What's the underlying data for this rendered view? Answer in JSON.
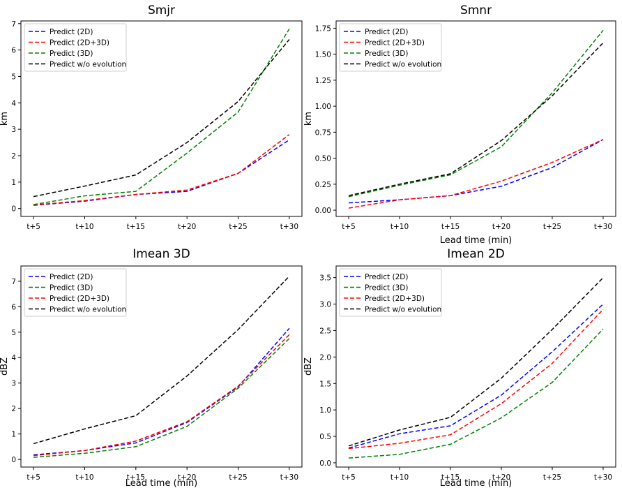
{
  "chart_data": [
    {
      "type": "line",
      "title": "Smjr",
      "xlabel": "",
      "ylabel": "km",
      "categories": [
        "t+5",
        "t+10",
        "t+15",
        "t+20",
        "t+25",
        "t+30"
      ],
      "ylim": [
        -0.3,
        7.1
      ],
      "yticks": [
        "0",
        "1",
        "2",
        "3",
        "4",
        "5",
        "6",
        "7"
      ],
      "ytick_values": [
        0,
        1,
        2,
        3,
        4,
        5,
        6,
        7
      ],
      "grid": false,
      "legend_position": "top-left",
      "series": [
        {
          "name": "Predict (2D)",
          "color": "#0000ff",
          "values": [
            0.12,
            0.28,
            0.53,
            0.65,
            1.33,
            2.6
          ]
        },
        {
          "name": "Predict (2D+3D)",
          "color": "#ff0000",
          "values": [
            0.13,
            0.3,
            0.53,
            0.7,
            1.33,
            2.8
          ]
        },
        {
          "name": "Predict (3D)",
          "color": "#008000",
          "values": [
            0.15,
            0.48,
            0.65,
            2.1,
            3.65,
            6.8
          ]
        },
        {
          "name": "Predict w/o evolution",
          "color": "#000000",
          "values": [
            0.45,
            0.85,
            1.27,
            2.5,
            4.05,
            6.4
          ]
        }
      ]
    },
    {
      "type": "line",
      "title": "Smnr",
      "xlabel": "Lead time (min)",
      "ylabel": "km",
      "categories": [
        "t+5",
        "t+10",
        "t+15",
        "t+20",
        "t+25",
        "t+30"
      ],
      "ylim": [
        -0.06,
        1.82
      ],
      "yticks": [
        "0.00",
        "0.25",
        "0.50",
        "0.75",
        "1.00",
        "1.25",
        "1.50",
        "1.75"
      ],
      "ytick_values": [
        0,
        0.25,
        0.5,
        0.75,
        1.0,
        1.25,
        1.5,
        1.75
      ],
      "grid": false,
      "legend_position": "top-left",
      "series": [
        {
          "name": "Predict (2D)",
          "color": "#0000ff",
          "values": [
            0.07,
            0.1,
            0.14,
            0.23,
            0.41,
            0.68
          ]
        },
        {
          "name": "Predict (2D+3D)",
          "color": "#ff0000",
          "values": [
            0.02,
            0.1,
            0.14,
            0.28,
            0.46,
            0.68
          ]
        },
        {
          "name": "Predict (3D)",
          "color": "#008000",
          "values": [
            0.13,
            0.24,
            0.34,
            0.61,
            1.13,
            1.73
          ]
        },
        {
          "name": "Predict w/o evolution",
          "color": "#000000",
          "values": [
            0.14,
            0.25,
            0.35,
            0.67,
            1.1,
            1.61
          ]
        }
      ]
    },
    {
      "type": "line",
      "title": "Imean 3D",
      "xlabel": "Lead time (min)",
      "ylabel": "dBZ",
      "categories": [
        "t+5",
        "t+10",
        "t+15",
        "t+20",
        "t+25",
        "t+30"
      ],
      "ylim": [
        -0.3,
        7.6
      ],
      "yticks": [
        "0",
        "1",
        "2",
        "3",
        "4",
        "5",
        "6",
        "7"
      ],
      "ytick_values": [
        0,
        1,
        2,
        3,
        4,
        5,
        6,
        7
      ],
      "grid": false,
      "legend_position": "top-left",
      "series": [
        {
          "name": "Predict (2D)",
          "color": "#0000ff",
          "values": [
            0.18,
            0.35,
            0.65,
            1.45,
            2.85,
            5.15
          ]
        },
        {
          "name": "Predict (3D)",
          "color": "#008000",
          "values": [
            0.08,
            0.24,
            0.5,
            1.3,
            2.8,
            4.75
          ]
        },
        {
          "name": "Predict (2D+3D)",
          "color": "#ff0000",
          "values": [
            0.15,
            0.35,
            0.72,
            1.48,
            2.88,
            4.9
          ]
        },
        {
          "name": "Predict w/o evolution",
          "color": "#000000",
          "values": [
            0.62,
            1.2,
            1.72,
            3.28,
            5.1,
            7.2
          ]
        }
      ]
    },
    {
      "type": "line",
      "title": "Imean 2D",
      "xlabel": "Lead time (min)",
      "ylabel": "dBZ",
      "categories": [
        "t+5",
        "t+10",
        "t+15",
        "t+20",
        "t+25",
        "t+30"
      ],
      "ylim": [
        -0.08,
        3.72
      ],
      "yticks": [
        "0.0",
        "0.5",
        "1.0",
        "1.5",
        "2.0",
        "2.5",
        "3.0",
        "3.5"
      ],
      "ytick_values": [
        0,
        0.5,
        1.0,
        1.5,
        2.0,
        2.5,
        3.0,
        3.5
      ],
      "grid": false,
      "legend_position": "top-left",
      "series": [
        {
          "name": "Predict (2D)",
          "color": "#0000ff",
          "values": [
            0.28,
            0.55,
            0.7,
            1.28,
            2.1,
            3.0
          ]
        },
        {
          "name": "Predict (3D)",
          "color": "#008000",
          "values": [
            0.09,
            0.16,
            0.35,
            0.85,
            1.52,
            2.53
          ]
        },
        {
          "name": "Predict (2D+3D)",
          "color": "#ff0000",
          "values": [
            0.27,
            0.37,
            0.53,
            1.12,
            1.88,
            2.9
          ]
        },
        {
          "name": "Predict w/o evolution",
          "color": "#000000",
          "values": [
            0.32,
            0.62,
            0.86,
            1.6,
            2.52,
            3.5
          ]
        }
      ]
    }
  ]
}
